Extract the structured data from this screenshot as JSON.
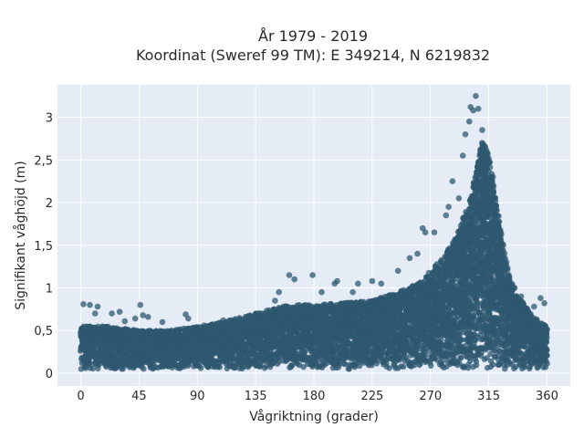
{
  "chart_data": {
    "type": "scatter",
    "title": "År 1979 - 2019",
    "subtitle": "Koordinat (Sweref 99 TM): E 349214, N 6219832",
    "xlabel": "Vågriktning (grader)",
    "ylabel": "Signifikant våghöjd (m)",
    "xlim": [
      -18,
      378
    ],
    "ylim": [
      -0.15,
      3.38
    ],
    "x_ticks": [
      0,
      45,
      90,
      135,
      180,
      225,
      270,
      315,
      360
    ],
    "x_tick_labels": [
      "0",
      "45",
      "90",
      "135",
      "180",
      "225",
      "270",
      "315",
      "360"
    ],
    "y_ticks": [
      0,
      0.5,
      1,
      1.5,
      2,
      2.5,
      3
    ],
    "y_tick_labels": [
      "0",
      "0,5",
      "1",
      "1,5",
      "2",
      "2,5",
      "3"
    ],
    "grid": true,
    "legend": "none",
    "marker_color": "#2f5870",
    "background_color": "#e5ecf6",
    "envelope_upper": {
      "x": [
        0,
        20,
        45,
        70,
        90,
        110,
        135,
        160,
        180,
        200,
        225,
        245,
        260,
        270,
        280,
        290,
        295,
        300,
        305,
        310,
        315,
        320,
        325,
        330,
        335,
        340,
        345,
        350,
        355,
        360
      ],
      "y": [
        0.55,
        0.55,
        0.5,
        0.5,
        0.55,
        0.6,
        0.7,
        0.8,
        0.8,
        0.82,
        0.85,
        0.95,
        1.05,
        1.2,
        1.35,
        1.6,
        1.8,
        2.0,
        2.35,
        2.75,
        2.6,
        2.1,
        1.6,
        1.2,
        0.95,
        0.85,
        0.75,
        0.65,
        0.6,
        0.55
      ]
    },
    "envelope_lower": {
      "x": [
        0,
        360
      ],
      "y": [
        0.05,
        0.05
      ]
    },
    "outliers": [
      {
        "x": 2,
        "y": 0.81
      },
      {
        "x": 7,
        "y": 0.8
      },
      {
        "x": 11,
        "y": 0.7
      },
      {
        "x": 13,
        "y": 0.78
      },
      {
        "x": 24,
        "y": 0.7
      },
      {
        "x": 30,
        "y": 0.72
      },
      {
        "x": 34,
        "y": 0.61
      },
      {
        "x": 42,
        "y": 0.64
      },
      {
        "x": 46,
        "y": 0.8
      },
      {
        "x": 48,
        "y": 0.68
      },
      {
        "x": 52,
        "y": 0.66
      },
      {
        "x": 63,
        "y": 0.6
      },
      {
        "x": 81,
        "y": 0.69
      },
      {
        "x": 83,
        "y": 0.64
      },
      {
        "x": 110,
        "y": 0.62
      },
      {
        "x": 150,
        "y": 0.85
      },
      {
        "x": 153,
        "y": 0.95
      },
      {
        "x": 161,
        "y": 1.15
      },
      {
        "x": 165,
        "y": 1.1
      },
      {
        "x": 179,
        "y": 1.15
      },
      {
        "x": 186,
        "y": 0.95
      },
      {
        "x": 196,
        "y": 1.05
      },
      {
        "x": 198,
        "y": 1.08
      },
      {
        "x": 210,
        "y": 0.95
      },
      {
        "x": 214,
        "y": 1.05
      },
      {
        "x": 225,
        "y": 1.08
      },
      {
        "x": 232,
        "y": 1.05
      },
      {
        "x": 245,
        "y": 1.2
      },
      {
        "x": 254,
        "y": 1.35
      },
      {
        "x": 260,
        "y": 1.4
      },
      {
        "x": 264,
        "y": 1.7
      },
      {
        "x": 266,
        "y": 1.65
      },
      {
        "x": 273,
        "y": 1.65
      },
      {
        "x": 282,
        "y": 1.85
      },
      {
        "x": 284,
        "y": 1.95
      },
      {
        "x": 287,
        "y": 2.25
      },
      {
        "x": 292,
        "y": 2.05
      },
      {
        "x": 295,
        "y": 2.55
      },
      {
        "x": 297,
        "y": 2.8
      },
      {
        "x": 300,
        "y": 2.95
      },
      {
        "x": 301,
        "y": 3.12
      },
      {
        "x": 303,
        "y": 3.08
      },
      {
        "x": 305,
        "y": 3.25
      },
      {
        "x": 307,
        "y": 3.1
      },
      {
        "x": 310,
        "y": 2.85
      },
      {
        "x": 312,
        "y": 2.65
      },
      {
        "x": 318,
        "y": 2.2
      },
      {
        "x": 324,
        "y": 1.65
      },
      {
        "x": 327,
        "y": 1.3
      },
      {
        "x": 335,
        "y": 1.0
      },
      {
        "x": 340,
        "y": 0.9
      },
      {
        "x": 350,
        "y": 0.78
      },
      {
        "x": 355,
        "y": 0.88
      },
      {
        "x": 358,
        "y": 0.82
      }
    ]
  }
}
